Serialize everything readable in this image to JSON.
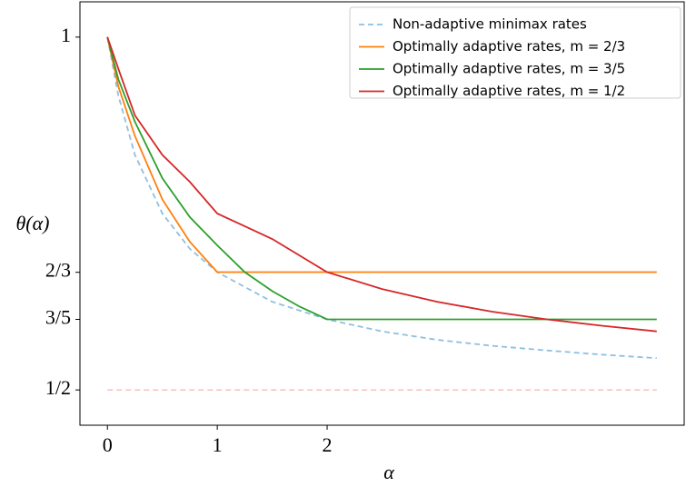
{
  "chart_data": {
    "type": "line",
    "xlabel": "α",
    "ylabel": "θ(α)",
    "xlim": [
      -0.25,
      5.25
    ],
    "ylim": [
      0.45,
      1.05
    ],
    "xticks": [
      0,
      1,
      2
    ],
    "yticks": [
      1,
      {
        "value": 0.6667,
        "label": "2/3"
      },
      {
        "value": 0.6,
        "label": "3/5"
      },
      {
        "value": 0.5,
        "label": "1/2"
      }
    ],
    "legend": "upper right",
    "series": [
      {
        "name": "Non-adaptive minimax rates",
        "color": "#8fbfe0",
        "dashed": true,
        "x": [
          0,
          0.1,
          0.25,
          0.5,
          0.75,
          1,
          1.5,
          2,
          2.5,
          3,
          3.5,
          4,
          4.5,
          5
        ],
        "values": [
          1,
          0.917,
          0.833,
          0.75,
          0.7,
          0.667,
          0.625,
          0.6,
          0.583,
          0.571,
          0.5625,
          0.556,
          0.55,
          0.545
        ]
      },
      {
        "name": "Optimally adaptive rates, m = 2/3",
        "color": "#ff7f0e",
        "dashed": false,
        "x": [
          0,
          0.1,
          0.25,
          0.5,
          0.75,
          1,
          5
        ],
        "values": [
          1,
          0.93,
          0.86,
          0.77,
          0.71,
          0.667,
          0.667
        ]
      },
      {
        "name": "Optimally adaptive rates, m = 3/5",
        "color": "#2ca02c",
        "dashed": false,
        "x": [
          0,
          0.1,
          0.25,
          0.5,
          0.75,
          1,
          1.25,
          1.5,
          1.75,
          2,
          5
        ],
        "values": [
          1,
          0.94,
          0.88,
          0.8,
          0.745,
          0.705,
          0.667,
          0.64,
          0.618,
          0.6,
          0.6
        ]
      },
      {
        "name": "Optimally adaptive rates, m = 1/2",
        "color": "#d62728",
        "dashed": false,
        "x": [
          0,
          0.1,
          0.25,
          0.5,
          0.75,
          1,
          1.5,
          2,
          2.5,
          3,
          3.5,
          4,
          4.5,
          5
        ],
        "values": [
          1,
          0.955,
          0.889,
          0.833,
          0.795,
          0.75,
          0.714,
          0.667,
          0.643,
          0.625,
          0.611,
          0.6,
          0.591,
          0.583
        ]
      }
    ],
    "reference_line": {
      "color": "#f7c0bf",
      "x": [
        0,
        5
      ],
      "values": [
        0.5,
        0.5
      ]
    }
  }
}
